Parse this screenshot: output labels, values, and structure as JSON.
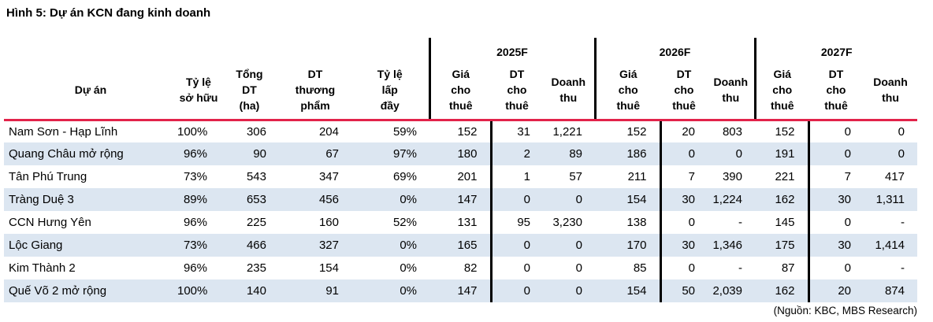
{
  "title": "Hình 5: Dự án KCN đang kinh doanh",
  "source": "(Nguồn: KBC, MBS Research)",
  "colors": {
    "accent_red": "#e2234a",
    "row_stripe": "#dce6f1",
    "divider": "#000000",
    "text": "#000000"
  },
  "table": {
    "base_headers": [
      "Dự án",
      "Tỷ lệ\nsở hữu",
      "Tổng\nDT\n(ha)",
      "DT\nthương\nphẩm",
      "Tỷ lệ\nlấp\nđầy"
    ],
    "groups": [
      {
        "year": "2025F",
        "subs": [
          "Giá\ncho\nthuê",
          "DT\ncho\nthuê",
          "Doanh\nthu"
        ]
      },
      {
        "year": "2026F",
        "subs": [
          "Giá\ncho\nthuê",
          "DT\ncho\nthuê",
          "Doanh\nthu"
        ]
      },
      {
        "year": "2027F",
        "subs": [
          "Giá\ncho\nthuê",
          "DT\ncho\nthuê",
          "Doanh\nthu"
        ]
      }
    ],
    "rows": [
      {
        "name": "Nam Sơn - Hạp Lĩnh",
        "values": [
          "100%",
          "306",
          "204",
          "59%",
          "152",
          "31",
          "1,221",
          "152",
          "20",
          "803",
          "152",
          "0",
          "0"
        ]
      },
      {
        "name": "Quang Châu mở rộng",
        "values": [
          "96%",
          "90",
          "67",
          "97%",
          "180",
          "2",
          "89",
          "186",
          "0",
          "0",
          "191",
          "0",
          "0"
        ]
      },
      {
        "name": "Tân Phú Trung",
        "values": [
          "73%",
          "543",
          "347",
          "69%",
          "201",
          "1",
          "57",
          "211",
          "7",
          "390",
          "221",
          "7",
          "417"
        ]
      },
      {
        "name": "Tràng Duệ 3",
        "values": [
          "89%",
          "653",
          "456",
          "0%",
          "147",
          "0",
          "0",
          "154",
          "30",
          "1,224",
          "162",
          "30",
          "1,311"
        ]
      },
      {
        "name": "CCN Hưng Yên",
        "values": [
          "96%",
          "225",
          "160",
          "52%",
          "131",
          "95",
          "3,230",
          "138",
          "0",
          "-",
          "145",
          "0",
          "-"
        ]
      },
      {
        "name": "Lộc Giang",
        "values": [
          "73%",
          "466",
          "327",
          "0%",
          "165",
          "0",
          "0",
          "170",
          "30",
          "1,346",
          "175",
          "30",
          "1,414"
        ]
      },
      {
        "name": "Kim Thành 2",
        "values": [
          "96%",
          "235",
          "154",
          "0%",
          "82",
          "0",
          "0",
          "85",
          "0",
          "-",
          "87",
          "0",
          "-"
        ]
      },
      {
        "name": "Quế Võ 2 mở rộng",
        "values": [
          "100%",
          "140",
          "91",
          "0%",
          "147",
          "0",
          "0",
          "154",
          "50",
          "2,039",
          "162",
          "20",
          "874"
        ]
      }
    ]
  }
}
